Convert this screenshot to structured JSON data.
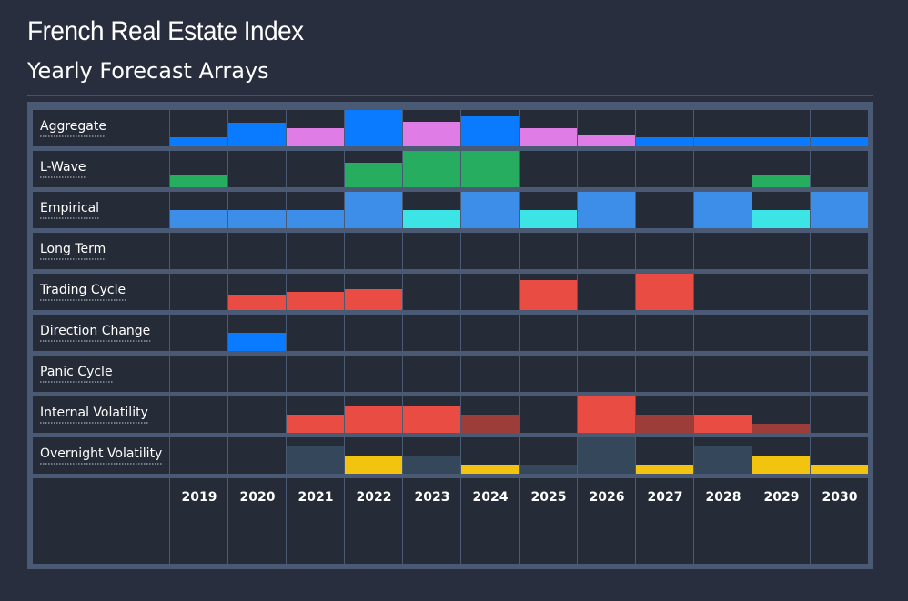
{
  "header": {
    "title": "French Real Estate Index",
    "subtitle": "Yearly Forecast Arrays"
  },
  "colors": {
    "background": "#282e3d",
    "panel": "#4a5a74",
    "cell": "#262b38",
    "blue": "#0a7aff",
    "violet": "#e07ce6",
    "green": "#26ad5f",
    "lightblue": "#3d8ee8",
    "cyan": "#3ce4e6",
    "red": "#e84c43",
    "darkred": "#9c3d3a",
    "slate": "#34475b",
    "yellow": "#f2c40f"
  },
  "chart_data": {
    "type": "heatmap",
    "title": "Yearly Forecast Arrays",
    "years": [
      "2019",
      "2020",
      "2021",
      "2022",
      "2023",
      "2024",
      "2025",
      "2026",
      "2027",
      "2028",
      "2029",
      "2030"
    ],
    "value_scale": [
      0,
      4
    ],
    "rows": [
      {
        "label": "Aggregate",
        "values": [
          1,
          2.6,
          2,
          4,
          2.7,
          3.3,
          2,
          1.3,
          1,
          1,
          1,
          1
        ],
        "colors": [
          "blue",
          "blue",
          "violet",
          "blue",
          "violet",
          "blue",
          "violet",
          "violet",
          "blue",
          "blue",
          "blue",
          "blue"
        ]
      },
      {
        "label": "L-Wave",
        "values": [
          1.3,
          0,
          0,
          2.7,
          4,
          4,
          0,
          0,
          0,
          0,
          1.3,
          0
        ],
        "colors": [
          "green",
          null,
          null,
          "green",
          "green",
          "green",
          null,
          null,
          null,
          null,
          "green",
          null
        ]
      },
      {
        "label": "Empirical",
        "values": [
          2,
          2,
          2,
          4,
          2,
          4,
          2,
          4,
          0,
          4,
          2,
          4
        ],
        "colors": [
          "lightblue",
          "lightblue",
          "lightblue",
          "lightblue",
          "cyan",
          "lightblue",
          "cyan",
          "lightblue",
          null,
          "lightblue",
          "cyan",
          "lightblue"
        ]
      },
      {
        "label": "Long Term",
        "values": [
          0,
          0,
          0,
          0,
          0,
          0,
          0,
          0,
          0,
          0,
          0,
          0
        ],
        "colors": [
          null,
          null,
          null,
          null,
          null,
          null,
          null,
          null,
          null,
          null,
          null,
          null
        ]
      },
      {
        "label": "Trading Cycle",
        "values": [
          0,
          1.7,
          2,
          2.3,
          0,
          0,
          3.3,
          0,
          4,
          0,
          0,
          0
        ],
        "colors": [
          null,
          "red",
          "red",
          "red",
          null,
          null,
          "red",
          null,
          "red",
          null,
          null,
          null
        ]
      },
      {
        "label": "Direction Change",
        "values": [
          0,
          2,
          0,
          0,
          0,
          0,
          0,
          0,
          0,
          0,
          0,
          0
        ],
        "colors": [
          null,
          "blue",
          null,
          null,
          null,
          null,
          null,
          null,
          null,
          null,
          null,
          null
        ]
      },
      {
        "label": "Panic Cycle",
        "values": [
          0,
          0,
          0,
          0,
          0,
          0,
          0,
          0,
          0,
          0,
          0,
          0
        ],
        "colors": [
          null,
          null,
          null,
          null,
          null,
          null,
          null,
          null,
          null,
          null,
          null,
          null
        ]
      },
      {
        "label": "Internal Volatility",
        "values": [
          0,
          0,
          2,
          3,
          3,
          2,
          0,
          4,
          2,
          2,
          1,
          0
        ],
        "colors": [
          null,
          null,
          "red",
          "red",
          "red",
          "darkred",
          null,
          "red",
          "darkred",
          "red",
          "darkred",
          null
        ]
      },
      {
        "label": "Overnight Volatility",
        "values": [
          0,
          0,
          3,
          2,
          2,
          1,
          1,
          4,
          1,
          3,
          2,
          1
        ],
        "colors": [
          null,
          null,
          "slate",
          "yellow",
          "slate",
          "yellow",
          "slate",
          "slate",
          "yellow",
          "slate",
          "yellow",
          "yellow"
        ]
      }
    ]
  }
}
